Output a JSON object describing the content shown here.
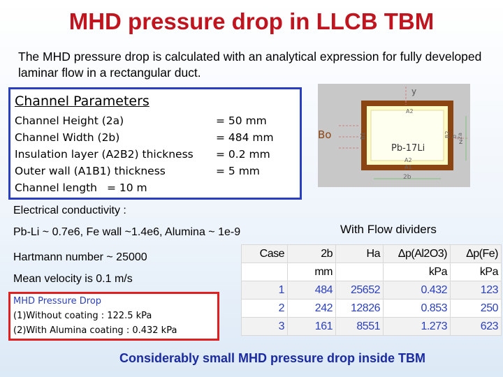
{
  "title": "MHD pressure drop in LLCB TBM",
  "intro": "The MHD pressure drop is calculated with an analytical expression for fully developed laminar flow in a rectangular duct.",
  "channel_parameters": {
    "heading": "Channel Parameters",
    "rows": [
      {
        "label": "Channel Height (2a)",
        "value": "= 50 mm"
      },
      {
        "label": "Channel Width (2b)",
        "value": "= 484 mm"
      },
      {
        "label": "Insulation layer (A2B2) thickness",
        "value": "= 0.2 mm"
      },
      {
        "label": "Outer wall (A1B1) thickness",
        "value": "= 5 mm"
      },
      {
        "label": "Channel length",
        "value": "= 10 m"
      }
    ]
  },
  "diagram": {
    "labels": {
      "y": "y",
      "a2": "A2",
      "bo": "Bo",
      "b1": "B1",
      "b2": "B2",
      "b": "b",
      "two_a": "2a",
      "z": "z",
      "fluid": "Pb-17Li",
      "a2_bottom": "A2",
      "a1": "A1",
      "two_b": "2b"
    }
  },
  "conductivity": {
    "heading": "Electrical conductivity :",
    "values": "Pb-Li ~ 0.7e6, Fe wall ~1.4e6, Alumina ~ 1e-9"
  },
  "hartmann": "Hartmann number ~ 25000",
  "velocity": "Mean velocity is 0.1 m/s",
  "table": {
    "caption": "With Flow dividers",
    "header": [
      "Case",
      "2b",
      "Ha",
      "Δp(Al2O3)",
      "Δp(Fe)"
    ],
    "units": [
      null,
      "mm",
      null,
      "kPa",
      "kPa"
    ],
    "rows": [
      [
        "1",
        "484",
        "25652",
        "0.432",
        "123"
      ],
      [
        "2",
        "242",
        "12826",
        "0.853",
        "250"
      ],
      [
        "3",
        "161",
        "8551",
        "1.273",
        "623"
      ]
    ]
  },
  "pressure_drop": {
    "heading": "MHD Pressure Drop",
    "lines": [
      "(1)Without coating : 122.5 kPa",
      "(2)With Alumina coating : 0.432 kPa"
    ]
  },
  "conclusion": "Considerably small MHD pressure drop inside TBM"
}
